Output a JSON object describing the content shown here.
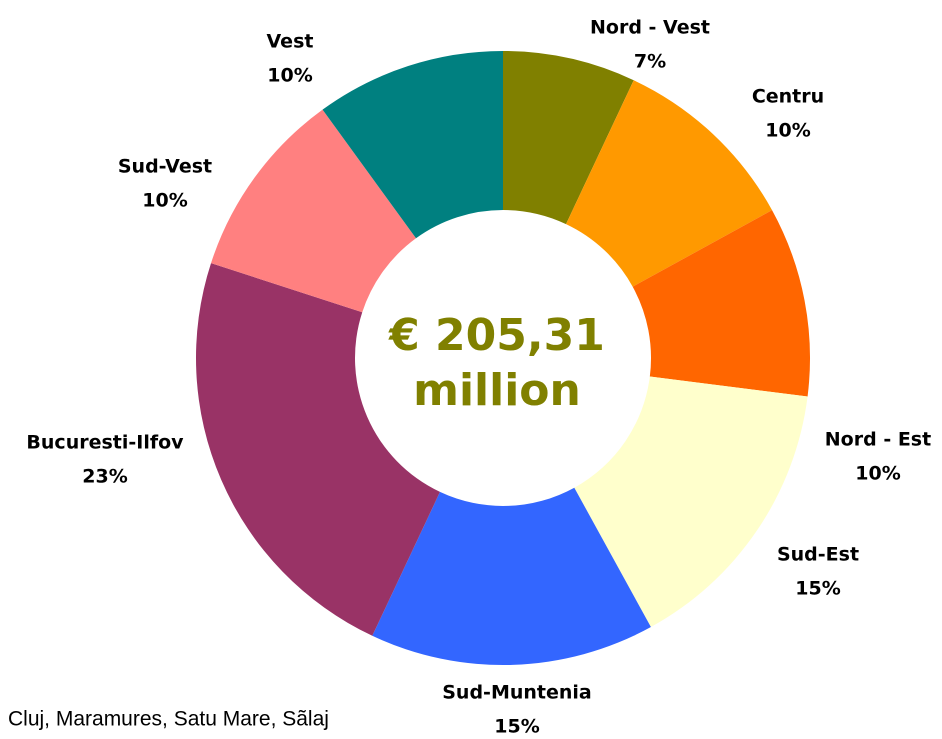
{
  "chart_data": {
    "type": "donut",
    "categories": [
      "Nord - Vest",
      "Centru",
      "Nord - Est",
      "Sud-Est",
      "Sud-Muntenia",
      "Bucuresti-Ilfov",
      "Sud-Vest",
      "Vest"
    ],
    "values": [
      7,
      10,
      10,
      15,
      15,
      23,
      10,
      10
    ],
    "value_labels": [
      "7%",
      "10%",
      "10%",
      "15%",
      "15%",
      "23%",
      "10%",
      "10%"
    ],
    "colors": [
      "#808000",
      "#ff9900",
      "#ff6600",
      "#ffffcc",
      "#3366ff",
      "#993366",
      "#ff8080",
      "#008080"
    ],
    "center_text": [
      "€ 205,31",
      "million"
    ],
    "note": "Cluj, Maramures, Satu Mare, Sãlaj"
  }
}
